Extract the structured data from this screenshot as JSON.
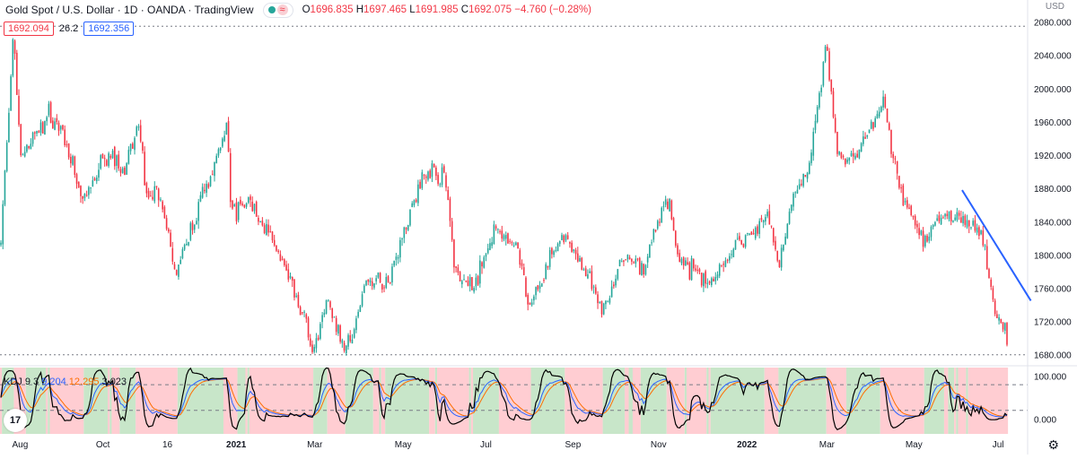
{
  "header": {
    "symbol": "Gold Spot / U.S. Dollar · 1D · OANDA · TradingView",
    "open_label": "O",
    "open": "1696.835",
    "high_label": "H",
    "high": "1697.465",
    "low_label": "L",
    "low": "1691.985",
    "close_label": "C",
    "close": "1692.075",
    "change": "−4.760 (−0.28%)",
    "price_box_1": "1692.094",
    "spread": "26.2",
    "price_box_2": "1692.356",
    "currency": "USD",
    "wave_icon": "≈"
  },
  "indicator": {
    "name": "KDJ 9 3",
    "k": "9.204",
    "d": "12.295",
    "j": "3.023"
  },
  "colors": {
    "up": "#26a69a",
    "down": "#f23645",
    "trendline": "#2962ff",
    "k_line": "#2962ff",
    "d_line": "#ff6d00",
    "j_line": "#000000",
    "bull_zone": "#c8e6c9",
    "bear_zone": "#ffcdd2"
  },
  "chart_data": [
    {
      "type": "candlestick",
      "ylabel": "USD",
      "ylim": [
        1670,
        2085
      ],
      "y_ticks": [
        "2080.000",
        "2040.000",
        "2000.000",
        "1960.000",
        "1920.000",
        "1880.000",
        "1840.000",
        "1800.000",
        "1760.000",
        "1720.000",
        "1680.000"
      ],
      "x_ticks": [
        "Aug",
        "Oct",
        "16",
        "2021",
        "Mar",
        "May",
        "Jul",
        "Sep",
        "Nov",
        "2022",
        "Mar",
        "May",
        "Jul"
      ],
      "dashed_levels": [
        2075,
        1680
      ],
      "close_path": [
        {
          "x": "2020-07-28",
          "y": 1820
        },
        {
          "x": "2020-08-03",
          "y": 1980
        },
        {
          "x": "2020-08-06",
          "y": 2065
        },
        {
          "x": "2020-08-11",
          "y": 1920
        },
        {
          "x": "2020-08-20",
          "y": 1940
        },
        {
          "x": "2020-08-31",
          "y": 1968
        },
        {
          "x": "2020-09-10",
          "y": 1948
        },
        {
          "x": "2020-09-24",
          "y": 1862
        },
        {
          "x": "2020-10-12",
          "y": 1925
        },
        {
          "x": "2020-10-23",
          "y": 1903
        },
        {
          "x": "2020-11-04",
          "y": 1950
        },
        {
          "x": "2020-11-09",
          "y": 1862
        },
        {
          "x": "2020-11-17",
          "y": 1882
        },
        {
          "x": "2020-11-30",
          "y": 1775
        },
        {
          "x": "2020-12-16",
          "y": 1860
        },
        {
          "x": "2021-01-05",
          "y": 1952
        },
        {
          "x": "2021-01-08",
          "y": 1850
        },
        {
          "x": "2021-01-22",
          "y": 1865
        },
        {
          "x": "2021-02-01",
          "y": 1835
        },
        {
          "x": "2021-02-18",
          "y": 1773
        },
        {
          "x": "2021-03-01",
          "y": 1725
        },
        {
          "x": "2021-03-08",
          "y": 1683
        },
        {
          "x": "2021-03-17",
          "y": 1745
        },
        {
          "x": "2021-03-31",
          "y": 1686
        },
        {
          "x": "2021-04-15",
          "y": 1765
        },
        {
          "x": "2021-04-30",
          "y": 1770
        },
        {
          "x": "2021-05-14",
          "y": 1845
        },
        {
          "x": "2021-05-28",
          "y": 1905
        },
        {
          "x": "2021-06-10",
          "y": 1890
        },
        {
          "x": "2021-06-17",
          "y": 1780
        },
        {
          "x": "2021-06-29",
          "y": 1760
        },
        {
          "x": "2021-07-15",
          "y": 1828
        },
        {
          "x": "2021-07-30",
          "y": 1815
        },
        {
          "x": "2021-08-06",
          "y": 1760
        },
        {
          "x": "2021-08-09",
          "y": 1730
        },
        {
          "x": "2021-08-20",
          "y": 1785
        },
        {
          "x": "2021-09-03",
          "y": 1825
        },
        {
          "x": "2021-09-22",
          "y": 1765
        },
        {
          "x": "2021-09-29",
          "y": 1728
        },
        {
          "x": "2021-10-14",
          "y": 1795
        },
        {
          "x": "2021-10-29",
          "y": 1785
        },
        {
          "x": "2021-11-10",
          "y": 1850
        },
        {
          "x": "2021-11-16",
          "y": 1870
        },
        {
          "x": "2021-11-23",
          "y": 1790
        },
        {
          "x": "2021-12-15",
          "y": 1770
        },
        {
          "x": "2022-01-05",
          "y": 1815
        },
        {
          "x": "2022-01-25",
          "y": 1845
        },
        {
          "x": "2022-02-03",
          "y": 1790
        },
        {
          "x": "2022-02-11",
          "y": 1860
        },
        {
          "x": "2022-02-24",
          "y": 1905
        },
        {
          "x": "2022-03-08",
          "y": 2050
        },
        {
          "x": "2022-03-16",
          "y": 1920
        },
        {
          "x": "2022-03-29",
          "y": 1915
        },
        {
          "x": "2022-04-18",
          "y": 1985
        },
        {
          "x": "2022-04-28",
          "y": 1890
        },
        {
          "x": "2022-05-16",
          "y": 1812
        },
        {
          "x": "2022-05-31",
          "y": 1850
        },
        {
          "x": "2022-06-10",
          "y": 1845
        },
        {
          "x": "2022-06-17",
          "y": 1840
        },
        {
          "x": "2022-06-29",
          "y": 1815
        },
        {
          "x": "2022-07-06",
          "y": 1738
        },
        {
          "x": "2022-07-14",
          "y": 1705
        },
        {
          "x": "2022-07-15",
          "y": 1692
        }
      ],
      "trendline": [
        {
          "x": "2022-06-13",
          "y": 1878
        },
        {
          "x": "2022-08-01",
          "y": 1745
        }
      ],
      "last_close": 1692.075
    },
    {
      "type": "line",
      "name": "KDJ 9 3",
      "ylim": [
        -35,
        120
      ],
      "y_ticks": [
        "100.000",
        "0.000"
      ],
      "dashed_levels": [
        80,
        20
      ],
      "series": [
        {
          "name": "K",
          "values": [
            9.204
          ]
        },
        {
          "name": "D",
          "values": [
            12.295
          ]
        },
        {
          "name": "J",
          "values": [
            3.023
          ]
        }
      ]
    }
  ]
}
